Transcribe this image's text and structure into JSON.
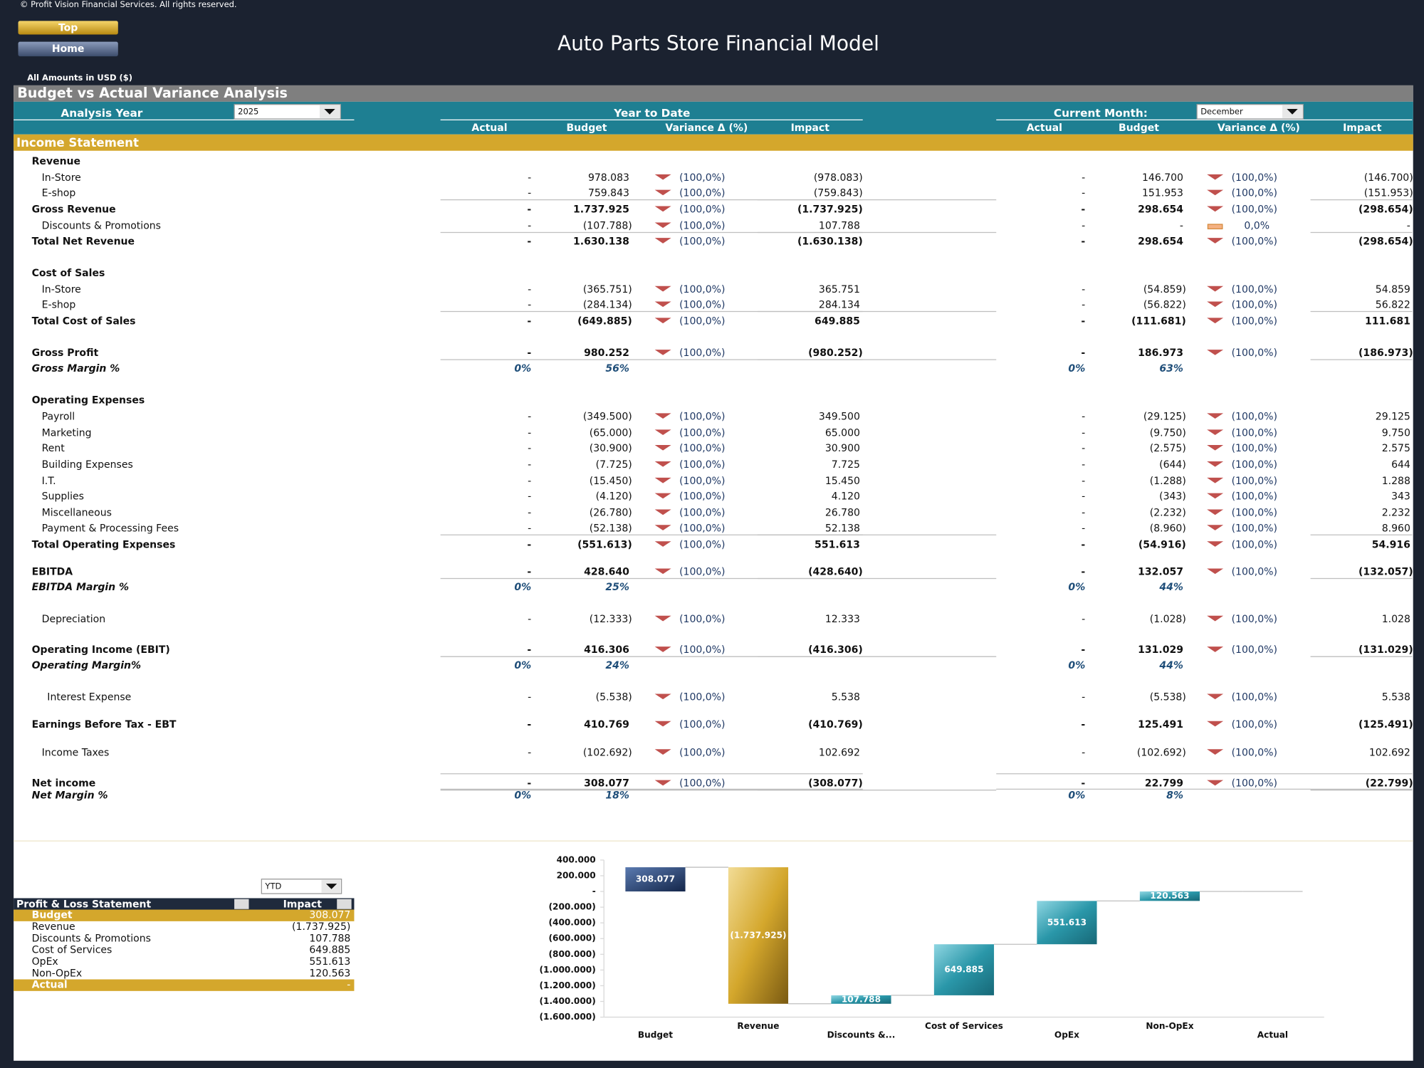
{
  "header": {
    "copyright": "© Profit Vision Financial Services. All rights reserved.",
    "buttons": [
      "Top",
      "Home"
    ],
    "title": "Auto Parts Store Financial Model",
    "amounts_note": "All Amounts in  USD ($)"
  },
  "analysis": {
    "title": "Budget vs Actual Variance Analysis",
    "year_label": "Analysis Year",
    "year": "2025",
    "ytd_label": "Year to Date",
    "month_label": "Current Month:",
    "month": "December",
    "columns": [
      "Actual",
      "Budget",
      "Variance Δ  (%)",
      "Impact"
    ]
  },
  "income_statement": {
    "title": "Income Statement",
    "rows": [
      {
        "label": "Revenue",
        "style": "bold"
      },
      {
        "label": "In-Store",
        "style": "item",
        "ytd": [
          "-",
          "978.083",
          "(100,0%)",
          "(978.083)"
        ],
        "month": [
          "-",
          "146.700",
          "(100,0%)",
          "(146.700)"
        ]
      },
      {
        "label": "E-shop",
        "style": "item",
        "ytd": [
          "-",
          "759.843",
          "(100,0%)",
          "(759.843)"
        ],
        "month": [
          "-",
          "151.953",
          "(100,0%)",
          "(151.953)"
        ]
      },
      {
        "label": "Gross Revenue",
        "style": "bold",
        "ytd": [
          "-",
          "1.737.925",
          "(100,0%)",
          "(1.737.925)"
        ],
        "month": [
          "-",
          "298.654",
          "(100,0%)",
          "(298.654)"
        ]
      },
      {
        "label": "Discounts & Promotions",
        "style": "item",
        "ytd": [
          "-",
          "(107.788)",
          "(100,0%)",
          "107.788"
        ],
        "month": [
          "-",
          "-",
          "0,0%",
          "-"
        ]
      },
      {
        "label": "Total Net Revenue",
        "style": "bold",
        "ytd": [
          "-",
          "1.630.138",
          "(100,0%)",
          "(1.630.138)"
        ],
        "month": [
          "-",
          "298.654",
          "(100,0%)",
          "(298.654)"
        ]
      },
      {
        "label": "Cost of Sales",
        "style": "bold"
      },
      {
        "label": "In-Store",
        "style": "item",
        "ytd": [
          "-",
          "(365.751)",
          "(100,0%)",
          "365.751"
        ],
        "month": [
          "-",
          "(54.859)",
          "(100,0%)",
          "54.859"
        ]
      },
      {
        "label": "E-shop",
        "style": "item",
        "ytd": [
          "-",
          "(284.134)",
          "(100,0%)",
          "284.134"
        ],
        "month": [
          "-",
          "(56.822)",
          "(100,0%)",
          "56.822"
        ]
      },
      {
        "label": "Total Cost of Sales",
        "style": "bold",
        "ytd": [
          "-",
          "(649.885)",
          "(100,0%)",
          "649.885"
        ],
        "month": [
          "-",
          "(111.681)",
          "(100,0%)",
          "111.681"
        ]
      },
      {
        "label": "Gross Profit",
        "style": "bold",
        "ytd": [
          "-",
          "980.252",
          "(100,0%)",
          "(980.252)"
        ],
        "month": [
          "-",
          "186.973",
          "(100,0%)",
          "(186.973)"
        ]
      },
      {
        "label": "Gross Margin %",
        "style": "italic",
        "ytd": [
          "0%",
          "56%"
        ],
        "month": [
          "0%",
          "63%"
        ]
      },
      {
        "label": "Operating Expenses",
        "style": "bold"
      },
      {
        "label": "Payroll",
        "style": "item",
        "ytd": [
          "-",
          "(349.500)",
          "(100,0%)",
          "349.500"
        ],
        "month": [
          "-",
          "(29.125)",
          "(100,0%)",
          "29.125"
        ]
      },
      {
        "label": "Marketing",
        "style": "item",
        "ytd": [
          "-",
          "(65.000)",
          "(100,0%)",
          "65.000"
        ],
        "month": [
          "-",
          "(9.750)",
          "(100,0%)",
          "9.750"
        ]
      },
      {
        "label": "Rent",
        "style": "item",
        "ytd": [
          "-",
          "(30.900)",
          "(100,0%)",
          "30.900"
        ],
        "month": [
          "-",
          "(2.575)",
          "(100,0%)",
          "2.575"
        ]
      },
      {
        "label": "Building Expenses",
        "style": "item",
        "ytd": [
          "-",
          "(7.725)",
          "(100,0%)",
          "7.725"
        ],
        "month": [
          "-",
          "(644)",
          "(100,0%)",
          "644"
        ]
      },
      {
        "label": "I.T.",
        "style": "item",
        "ytd": [
          "-",
          "(15.450)",
          "(100,0%)",
          "15.450"
        ],
        "month": [
          "-",
          "(1.288)",
          "(100,0%)",
          "1.288"
        ]
      },
      {
        "label": "Supplies",
        "style": "item",
        "ytd": [
          "-",
          "(4.120)",
          "(100,0%)",
          "4.120"
        ],
        "month": [
          "-",
          "(343)",
          "(100,0%)",
          "343"
        ]
      },
      {
        "label": "Miscellaneous",
        "style": "item",
        "ytd": [
          "-",
          "(26.780)",
          "(100,0%)",
          "26.780"
        ],
        "month": [
          "-",
          "(2.232)",
          "(100,0%)",
          "2.232"
        ]
      },
      {
        "label": "Payment & Processing Fees",
        "style": "item",
        "ytd": [
          "-",
          "(52.138)",
          "(100,0%)",
          "52.138"
        ],
        "month": [
          "-",
          "(8.960)",
          "(100,0%)",
          "8.960"
        ]
      },
      {
        "label": "Total Operating Expenses",
        "style": "bold",
        "ytd": [
          "-",
          "(551.613)",
          "(100,0%)",
          "551.613"
        ],
        "month": [
          "-",
          "(54.916)",
          "(100,0%)",
          "54.916"
        ]
      },
      {
        "label": "EBITDA",
        "style": "bold",
        "ytd": [
          "-",
          "428.640",
          "(100,0%)",
          "(428.640)"
        ],
        "month": [
          "-",
          "132.057",
          "(100,0%)",
          "(132.057)"
        ]
      },
      {
        "label": "EBITDA Margin %",
        "style": "italic",
        "ytd": [
          "0%",
          "25%"
        ],
        "month": [
          "0%",
          "44%"
        ]
      },
      {
        "label": "Depreciation",
        "style": "item",
        "ytd": [
          "-",
          "(12.333)",
          "(100,0%)",
          "12.333"
        ],
        "month": [
          "-",
          "(1.028)",
          "(100,0%)",
          "1.028"
        ]
      },
      {
        "label": "Operating Income (EBIT)",
        "style": "bold",
        "ytd": [
          "-",
          "416.306",
          "(100,0%)",
          "(416.306)"
        ],
        "month": [
          "-",
          "131.029",
          "(100,0%)",
          "(131.029)"
        ]
      },
      {
        "label": "Operating Margin%",
        "style": "italic",
        "ytd": [
          "0%",
          "24%"
        ],
        "month": [
          "0%",
          "44%"
        ]
      },
      {
        "label": "Interest Expense",
        "style": "item",
        "ytd": [
          "-",
          "(5.538)",
          "(100,0%)",
          "5.538"
        ],
        "month": [
          "-",
          "(5.538)",
          "(100,0%)",
          "5.538"
        ]
      },
      {
        "label": "Earnings Before Tax - EBT",
        "style": "bold",
        "ytd": [
          "-",
          "410.769",
          "(100,0%)",
          "(410.769)"
        ],
        "month": [
          "-",
          "125.491",
          "(100,0%)",
          "(125.491)"
        ]
      },
      {
        "label": "Income Taxes",
        "style": "item",
        "ytd": [
          "-",
          "(102.692)",
          "(100,0%)",
          "102.692"
        ],
        "month": [
          "-",
          "(102.692)",
          "(100,0%)",
          "102.692"
        ]
      },
      {
        "label": "Net income",
        "style": "bold",
        "ytd": [
          "-",
          "308.077",
          "(100,0%)",
          "(308.077)"
        ],
        "month": [
          "-",
          "22.799",
          "(100,0%)",
          "(22.799)"
        ]
      },
      {
        "label": "Net Margin %",
        "style": "italic",
        "ytd": [
          "0%",
          "18%"
        ],
        "month": [
          "0%",
          "8%"
        ]
      }
    ]
  },
  "pl_table": {
    "filter": "YTD",
    "headers": [
      "Profit & Loss Statement",
      "Impact"
    ],
    "rows": [
      [
        "Budget",
        "308.077"
      ],
      [
        "Revenue",
        "(1.737.925)"
      ],
      [
        "Discounts & Promotions",
        "107.788"
      ],
      [
        "Cost of Services",
        "649.885"
      ],
      [
        "OpEx",
        "551.613"
      ],
      [
        "Non-OpEx",
        "120.563"
      ],
      [
        "Actual",
        "-"
      ]
    ]
  },
  "chart_data": {
    "type": "waterfall",
    "categories": [
      "Budget",
      "Revenue",
      "Discounts &...",
      "Cost of Services",
      "OpEx",
      "Non-OpEx",
      "Actual"
    ],
    "values": [
      308077,
      -1737925,
      107788,
      649885,
      551613,
      120563,
      0
    ],
    "value_labels": [
      "308.077",
      "(1.737.925)",
      "107.788",
      "649.885",
      "551.613",
      "120.563",
      null
    ],
    "colors": [
      "#1f3864",
      "#c9a227",
      "#2a97a9",
      "#2a97a9",
      "#2a97a9",
      "#2a97a9",
      "#2a97a9"
    ],
    "ylim": [
      -1600000,
      400000
    ],
    "yticks": [
      {
        "value": 400000,
        "label": "400.000"
      },
      {
        "value": 200000,
        "label": "200.000"
      },
      {
        "value": 0,
        "label": "-"
      },
      {
        "value": -200000,
        "label": "(200.000)"
      },
      {
        "value": -400000,
        "label": "(400.000)"
      },
      {
        "value": -600000,
        "label": "(600.000)"
      },
      {
        "value": -800000,
        "label": "(800.000)"
      },
      {
        "value": -1000000,
        "label": "(1.000.000)"
      },
      {
        "value": -1200000,
        "label": "(1.200.000)"
      },
      {
        "value": -1400000,
        "label": "(1.400.000)"
      },
      {
        "value": -1600000,
        "label": "(1.600.000)"
      }
    ]
  }
}
